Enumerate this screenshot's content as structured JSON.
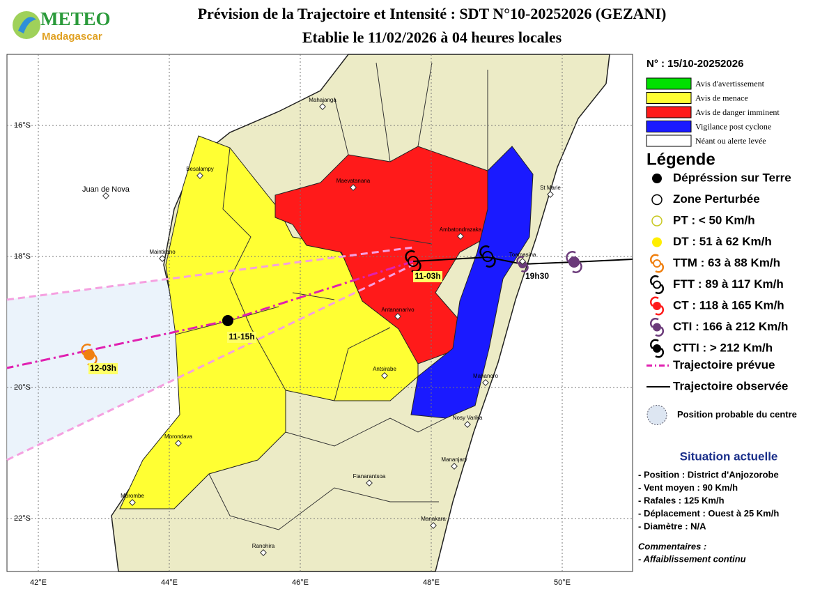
{
  "header": {
    "logo_line1": "METEO",
    "logo_line2": "Madagascar",
    "title": "Prévision de la Trajectoire et Intensité : SDT N°10-20252026 (GEZANI)",
    "subtitle": "Etablie le 11/02/2026 à 04 heures locales"
  },
  "map": {
    "lat_labels": [
      "16°S",
      "18°S",
      "20°S",
      "22°S"
    ],
    "lon_labels": [
      "42°E",
      "44°E",
      "46°E",
      "48°E",
      "50°E"
    ],
    "places": [
      "Mahajanga",
      "Maevatanana",
      "Besalampy",
      "Juan de Nova",
      "Maintirano",
      "Ambatondrazaka",
      "Antananarivo",
      "Toamasina",
      "St Marie",
      "Antsirabe",
      "Morondava",
      "Mahanoro",
      "Nosy Varika",
      "Mananjary",
      "Fianarantsoa",
      "Morombe",
      "Manakara",
      "Ranohira"
    ],
    "track_labels": [
      "11-03h",
      "11-15h",
      "12-03h",
      "19h30"
    ]
  },
  "panel": {
    "bulletin_number": "N° : 15/10-20252026",
    "alerts": [
      {
        "label": "Avis d'avertissement",
        "color": "#00e000"
      },
      {
        "label": "Avis de menace",
        "color": "#ffff33"
      },
      {
        "label": "Avis de danger imminent",
        "color": "#ff1a1a"
      },
      {
        "label": "Vigilance post cyclone",
        "color": "#1a1aff"
      },
      {
        "label": "Néant ou alerte levée",
        "color": "#ffffff"
      }
    ],
    "legend_title": "Légende",
    "legend": [
      "Dépréssion sur Terre",
      "Zone Perturbée",
      "PT : < 50 Km/h",
      "DT : 51 à 62 Km/h",
      "TTM : 63 à 88 Km/h",
      "FTT : 89 à 117 Km/h",
      "CT : 118 à 165 Km/h",
      "CTI : 166 à 212 Km/h",
      "CTTI : > 212 Km/h",
      "Trajectoire prévue",
      "Trajectoire observée",
      "Position probable du centre"
    ],
    "situation_title": "Situation actuelle",
    "situation": [
      "- Position : District d'Anjozorobe",
      "- Vent moyen : 90 Km/h",
      "- Rafales : 125 Km/h",
      "- Déplacement : Ouest à 25 Km/h",
      "- Diamètre : N/A"
    ],
    "comments_title": "Commentaires :",
    "comments": [
      "- Affaiblissement continu"
    ]
  }
}
